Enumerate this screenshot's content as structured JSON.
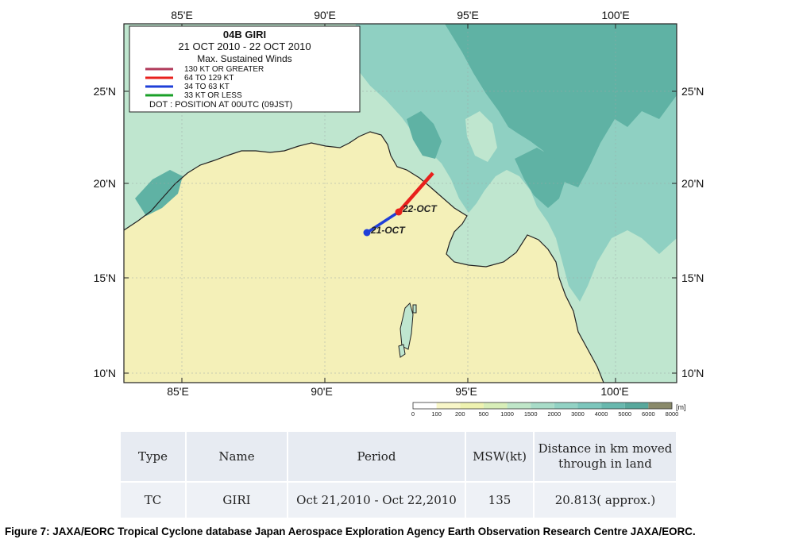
{
  "map": {
    "top_lon_ticks": [
      "85'E",
      "90'E",
      "95'E",
      "100'E"
    ],
    "bottom_lon_ticks": [
      "85'E",
      "90'E",
      "95'E",
      "100'E"
    ],
    "left_lat_ticks": [
      "25'N",
      "20'N",
      "15'N",
      "10'N"
    ],
    "right_lat_ticks": [
      "25'N",
      "20'N",
      "15'N",
      "10'N"
    ],
    "colors": {
      "sea": "#f4f0b8",
      "low_land": "#bfe6cf",
      "mid_land": "#8fd0c2",
      "high_land": "#5fb2a4",
      "coast": "#222222"
    }
  },
  "legend": {
    "title": "04B GIRI",
    "dates": "21 OCT 2010 - 22 OCT 2010",
    "subtitle": "Max. Sustained Winds",
    "entries": [
      {
        "label": "130 KT OR GREATER",
        "color": "#b03a5b"
      },
      {
        "label": "64 TO 129 KT",
        "color": "#e8201c"
      },
      {
        "label": "34 TO 63 KT",
        "color": "#1f3fd8"
      },
      {
        "label": "33 KT OR LESS",
        "color": "#1aa028"
      }
    ],
    "dot_note": "DOT : POSITION AT 00UTC (09JST)"
  },
  "track": {
    "label_21": "21-OCT",
    "label_22": "22-OCT"
  },
  "colorbar": {
    "ticks": [
      "0",
      "100",
      "200",
      "500",
      "1000",
      "1500",
      "2000",
      "3000",
      "4000",
      "5000",
      "6000",
      "8000"
    ],
    "unit": "[m]",
    "colors": [
      "#ffffff",
      "#f8f6c8",
      "#eef2b0",
      "#d8eeb8",
      "#bfe6c8",
      "#a8dcc8",
      "#92d2c4",
      "#7cc6bc",
      "#68b8ae",
      "#58a89c",
      "#8a8a6a"
    ]
  },
  "table": {
    "headers": [
      "Type",
      "Name",
      "Period",
      "MSW(kt)",
      "Distance  in km moved through in land"
    ],
    "rows": [
      [
        "TC",
        "GIRI",
        "Oct 21,2010 - Oct 22,2010",
        "135",
        "20.813( approx.)"
      ]
    ]
  },
  "caption": "Figure 7: JAXA/EORC Tropical Cyclone database Japan Aerospace Exploration Agency Earth Observation Research Centre JAXA/EORC."
}
